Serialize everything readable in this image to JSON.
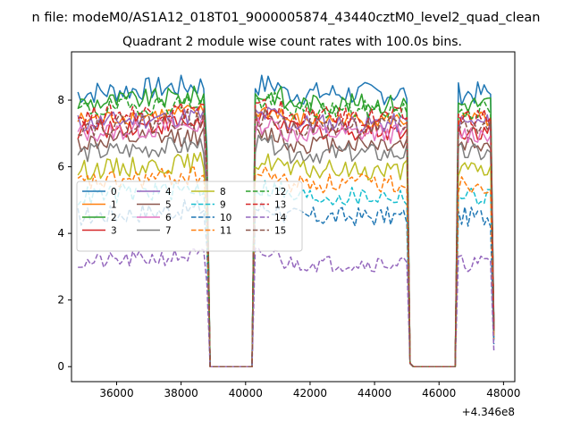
{
  "chart_data": {
    "type": "line",
    "suptitle": "n file: modeM0/AS1A12_018T01_9000005874_43440cztM0_level2_quad_clean",
    "title": "Quadrant 2 module wise count rates with 100.0s bins.",
    "xlabel": "",
    "ylabel": "",
    "x_offset_label": "+4.346e8",
    "xlim": [
      34600,
      48350
    ],
    "ylim": [
      -0.45,
      9.45
    ],
    "xticks": [
      36000,
      38000,
      40000,
      42000,
      44000,
      46000,
      48000
    ],
    "xtick_labels": [
      "36000",
      "38000",
      "40000",
      "42000",
      "44000",
      "46000",
      "48000"
    ],
    "yticks": [
      0,
      2,
      4,
      6,
      8
    ],
    "ytick_labels": [
      "0",
      "2",
      "4",
      "6",
      "8"
    ],
    "grid": false,
    "legend_placement": "center-left",
    "x_segments": [
      {
        "start": 34800,
        "end": 38700,
        "step": 100
      },
      {
        "start": 40300,
        "end": 45000,
        "step": 100
      },
      {
        "start": 46600,
        "end": 47600,
        "step": 100
      }
    ],
    "drop_points": {
      "segment_1_to_0": [
        38800,
        38900
      ],
      "zero_span": [
        38900,
        40200
      ],
      "rise": [
        40200,
        40300
      ]
    },
    "series": [
      {
        "name": "0",
        "color": "#1f77b4",
        "dash": "solid",
        "level": 8.2,
        "jitter": 0.35
      },
      {
        "name": "1",
        "color": "#ff7f0e",
        "dash": "solid",
        "level": 7.4,
        "jitter": 0.25
      },
      {
        "name": "2",
        "color": "#2ca02c",
        "dash": "solid",
        "level": 7.9,
        "jitter": 0.3
      },
      {
        "name": "3",
        "color": "#d62728",
        "dash": "solid",
        "level": 7.1,
        "jitter": 0.3
      },
      {
        "name": "4",
        "color": "#9467bd",
        "dash": "solid",
        "level": 7.3,
        "jitter": 0.3
      },
      {
        "name": "5",
        "color": "#8c564b",
        "dash": "solid",
        "level": 6.7,
        "jitter": 0.3
      },
      {
        "name": "6",
        "color": "#e377c2",
        "dash": "solid",
        "level": 7.0,
        "jitter": 0.3
      },
      {
        "name": "7",
        "color": "#7f7f7f",
        "dash": "solid",
        "level": 6.4,
        "jitter": 0.3
      },
      {
        "name": "8",
        "color": "#bcbd22",
        "dash": "solid",
        "level": 5.9,
        "jitter": 0.3
      },
      {
        "name": "9",
        "color": "#17becf",
        "dash": "dashed",
        "level": 5.1,
        "jitter": 0.3
      },
      {
        "name": "10",
        "color": "#1f77b4",
        "dash": "dashed",
        "level": 4.5,
        "jitter": 0.3
      },
      {
        "name": "11",
        "color": "#ff7f0e",
        "dash": "dashed",
        "level": 5.5,
        "jitter": 0.3
      },
      {
        "name": "12",
        "color": "#2ca02c",
        "dash": "dashed",
        "level": 7.7,
        "jitter": 0.3
      },
      {
        "name": "13",
        "color": "#d62728",
        "dash": "dashed",
        "level": 7.5,
        "jitter": 0.3
      },
      {
        "name": "14",
        "color": "#9467bd",
        "dash": "dashed",
        "level": 3.1,
        "jitter": 0.25
      },
      {
        "name": "15",
        "color": "#8c564b",
        "dash": "dashed",
        "level": 7.2,
        "jitter": 0.3
      }
    ]
  }
}
